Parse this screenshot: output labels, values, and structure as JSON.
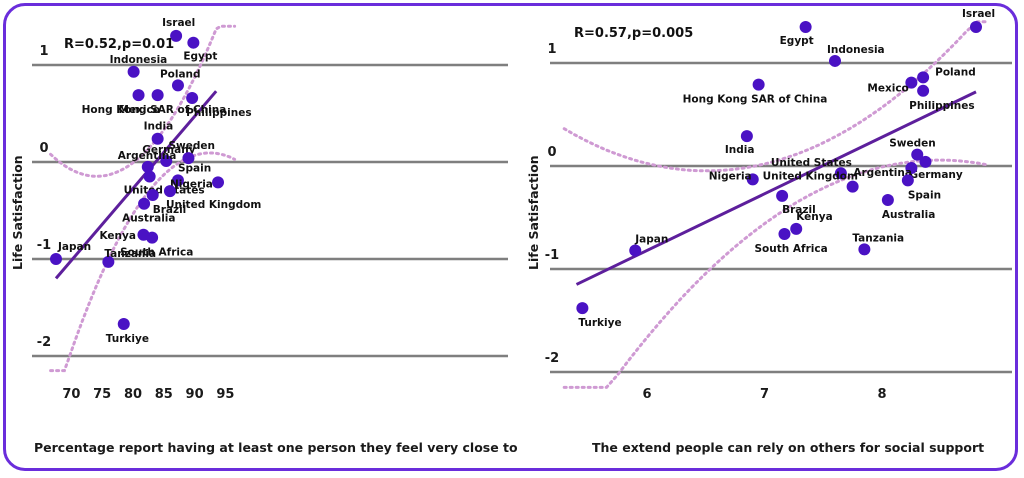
{
  "colors": {
    "frame": "#6a2ddb",
    "point": "#4a12c4",
    "fit": "#5d1f9c",
    "ci": "#cf9ad3",
    "grid": "#7f7f7f"
  },
  "chart_data": [
    {
      "type": "scatter",
      "xlabel": "Percentage report having at least one person they feel very close to",
      "ylabel": "Life Satisfaction",
      "annotation": "R=0.52,p=0.01",
      "xlim": [
        66.5,
        95.5
      ],
      "ylim": [
        -2.15,
        1.3
      ],
      "xticks": [
        70,
        75,
        80,
        85,
        90,
        95
      ],
      "yticks": [
        1,
        0,
        -1,
        -2
      ],
      "ytick_labels": [
        "1",
        "0",
        "-1",
        "-2"
      ],
      "grid": "horizontal",
      "fit": {
        "x": [
          67.5,
          93.5
        ],
        "y": [
          -1.2,
          0.73
        ]
      },
      "points": [
        {
          "label": "Israel",
          "x": 87.0,
          "y": 1.3
        },
        {
          "label": "Egypt",
          "x": 89.8,
          "y": 1.23
        },
        {
          "label": "Indonesia",
          "x": 80.1,
          "y": 0.93
        },
        {
          "label": "Mexico",
          "x": 80.9,
          "y": 0.69
        },
        {
          "label": "Hong Kong SAR of China",
          "x": 84.0,
          "y": 0.69
        },
        {
          "label": "Poland",
          "x": 87.3,
          "y": 0.79
        },
        {
          "label": "Philippines",
          "x": 89.6,
          "y": 0.66
        },
        {
          "label": "India",
          "x": 84.0,
          "y": 0.24
        },
        {
          "label": "Germany",
          "x": 85.4,
          "y": 0.01
        },
        {
          "label": "Sweden",
          "x": 89.0,
          "y": 0.04
        },
        {
          "label": "Argentina",
          "x": 82.4,
          "y": -0.05
        },
        {
          "label": "Spain",
          "x": 87.3,
          "y": -0.19
        },
        {
          "label": "United States",
          "x": 82.7,
          "y": -0.15
        },
        {
          "label": "Nigeria",
          "x": 93.8,
          "y": -0.21
        },
        {
          "label": "United Kingdom",
          "x": 86.0,
          "y": -0.3
        },
        {
          "label": "Brazil",
          "x": 83.2,
          "y": -0.34
        },
        {
          "label": "Australia",
          "x": 81.8,
          "y": -0.43
        },
        {
          "label": "Kenya",
          "x": 81.7,
          "y": -0.75
        },
        {
          "label": "South Africa",
          "x": 83.1,
          "y": -0.78
        },
        {
          "label": "Japan",
          "x": 67.5,
          "y": -1.0
        },
        {
          "label": "Tanzania",
          "x": 76.0,
          "y": -1.03
        },
        {
          "label": "Turkiye",
          "x": 78.5,
          "y": -1.67
        }
      ]
    },
    {
      "type": "scatter",
      "xlabel": "The extend people can rely on others for social support",
      "ylabel": "Life Satisfaction",
      "annotation": "R=0.57,p=0.005",
      "xlim": [
        5.35,
        8.85
      ],
      "ylim": [
        -2.15,
        1.3
      ],
      "xticks": [
        6,
        7,
        8
      ],
      "yticks": [
        1,
        0,
        -1,
        -2
      ],
      "ytick_labels": [
        "1",
        "0",
        "-1",
        "-2"
      ],
      "grid": "horizontal",
      "fit": {
        "x": [
          5.4,
          8.8
        ],
        "y": [
          -1.15,
          0.72
        ]
      },
      "points": [
        {
          "label": "Israel",
          "x": 8.8,
          "y": 1.35
        },
        {
          "label": "Egypt",
          "x": 7.35,
          "y": 1.35
        },
        {
          "label": "Indonesia",
          "x": 7.6,
          "y": 1.02
        },
        {
          "label": "Poland",
          "x": 8.35,
          "y": 0.86
        },
        {
          "label": "Mexico",
          "x": 8.25,
          "y": 0.81
        },
        {
          "label": "Philippines",
          "x": 8.35,
          "y": 0.73
        },
        {
          "label": "Hong Kong SAR of China",
          "x": 6.95,
          "y": 0.79
        },
        {
          "label": "India",
          "x": 6.85,
          "y": 0.29
        },
        {
          "label": "Sweden",
          "x": 8.3,
          "y": 0.11
        },
        {
          "label": "Germany",
          "x": 8.37,
          "y": 0.04
        },
        {
          "label": "Argentina",
          "x": 8.25,
          "y": -0.02
        },
        {
          "label": "United States",
          "x": 7.65,
          "y": -0.07
        },
        {
          "label": "Nigeria",
          "x": 6.9,
          "y": -0.13
        },
        {
          "label": "Spain",
          "x": 8.22,
          "y": -0.14
        },
        {
          "label": "United Kingdom",
          "x": 7.75,
          "y": -0.2
        },
        {
          "label": "Brazil",
          "x": 7.15,
          "y": -0.29
        },
        {
          "label": "Australia",
          "x": 8.05,
          "y": -0.33
        },
        {
          "label": "Kenya",
          "x": 7.27,
          "y": -0.61
        },
        {
          "label": "South Africa",
          "x": 7.17,
          "y": -0.66
        },
        {
          "label": "Japan",
          "x": 5.9,
          "y": -0.82
        },
        {
          "label": "Tanzania",
          "x": 7.85,
          "y": -0.81
        },
        {
          "label": "Turkiye",
          "x": 5.45,
          "y": -1.38
        }
      ]
    }
  ]
}
